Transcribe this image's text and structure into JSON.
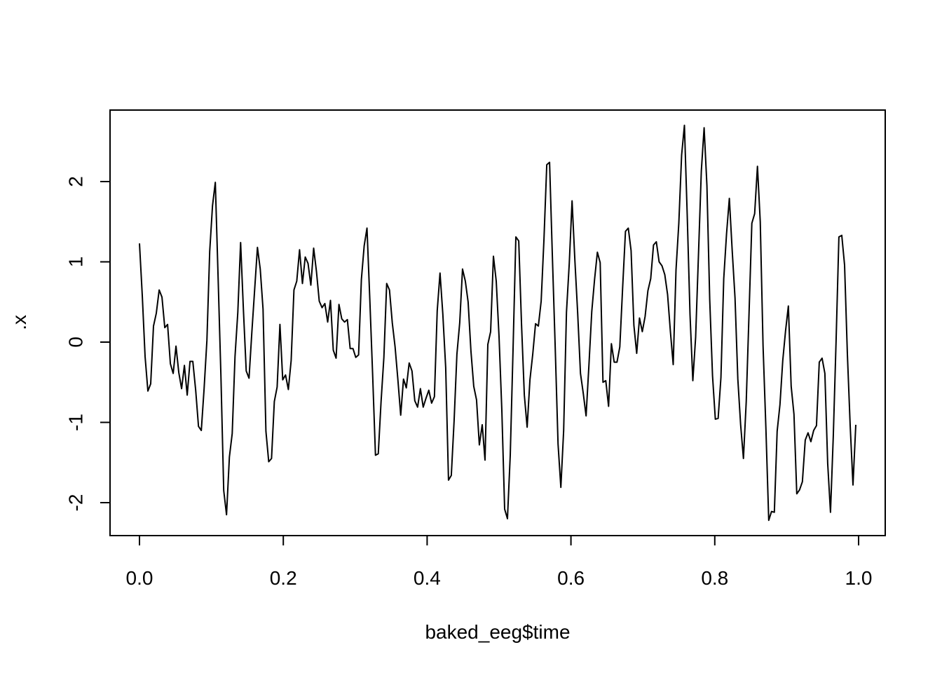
{
  "chart_data": {
    "type": "line",
    "title": "",
    "xlabel": "baked_eeg$time",
    "ylabel": ".x",
    "xlim": [
      0.0,
      1.0
    ],
    "ylim": [
      -2.5,
      2.8
    ],
    "x_ticks": [
      0.0,
      0.2,
      0.4,
      0.6,
      0.8,
      1.0
    ],
    "x_tick_labels": [
      "0.0",
      "0.2",
      "0.4",
      "0.6",
      "0.8",
      "1.0"
    ],
    "y_ticks": [
      -2,
      -1,
      0,
      1,
      2
    ],
    "y_tick_labels": [
      "-2",
      "-1",
      "0",
      "1",
      "2"
    ],
    "grid": false,
    "legend": "none",
    "line_color": "#000000",
    "series": [
      {
        "x": [
          0.0,
          0.00391,
          0.00781,
          0.01172,
          0.01563,
          0.01953,
          0.02344,
          0.02734,
          0.03125,
          0.03516,
          0.03906,
          0.04297,
          0.04688,
          0.05078,
          0.05469,
          0.05859,
          0.0625,
          0.06641,
          0.07031,
          0.07422,
          0.07813,
          0.08203,
          0.08594,
          0.08984,
          0.09375,
          0.09766,
          0.10156,
          0.10547,
          0.10938,
          0.11328,
          0.11719,
          0.12109,
          0.125,
          0.12891,
          0.13281,
          0.13672,
          0.14063,
          0.14453,
          0.14844,
          0.15234,
          0.15625,
          0.16016,
          0.16406,
          0.16797,
          0.17188,
          0.17578,
          0.17969,
          0.18359,
          0.1875,
          0.19141,
          0.19531,
          0.19922,
          0.20313,
          0.20703,
          0.21094,
          0.21484,
          0.21875,
          0.22266,
          0.22656,
          0.23047,
          0.23438,
          0.23828,
          0.24219,
          0.24609,
          0.25,
          0.25391,
          0.25781,
          0.26172,
          0.26563,
          0.26953,
          0.27344,
          0.27734,
          0.28125,
          0.28516,
          0.28906,
          0.29297,
          0.29688,
          0.30078,
          0.30469,
          0.30859,
          0.3125,
          0.31641,
          0.32031,
          0.32422,
          0.32813,
          0.33203,
          0.33594,
          0.33984,
          0.34375,
          0.34766,
          0.35156,
          0.35547,
          0.35938,
          0.36328,
          0.36719,
          0.37109,
          0.375,
          0.37891,
          0.38281,
          0.38672,
          0.39063,
          0.39453,
          0.39844,
          0.40234,
          0.40625,
          0.41016,
          0.41406,
          0.41797,
          0.42188,
          0.42578,
          0.42969,
          0.43359,
          0.4375,
          0.44141,
          0.44531,
          0.44922,
          0.45313,
          0.45703,
          0.46094,
          0.46484,
          0.46875,
          0.47266,
          0.47656,
          0.48047,
          0.48438,
          0.48828,
          0.49219,
          0.49609,
          0.5,
          0.50391,
          0.50781,
          0.51172,
          0.51563,
          0.51953,
          0.52344,
          0.52734,
          0.53125,
          0.53516,
          0.53906,
          0.54297,
          0.54688,
          0.55078,
          0.55469,
          0.55859,
          0.5625,
          0.56641,
          0.57031,
          0.57422,
          0.57813,
          0.58203,
          0.58594,
          0.58984,
          0.59375,
          0.59766,
          0.60156,
          0.60547,
          0.60938,
          0.61328,
          0.61719,
          0.62109,
          0.625,
          0.62891,
          0.63281,
          0.63672,
          0.64063,
          0.64453,
          0.64844,
          0.65234,
          0.65625,
          0.66016,
          0.66406,
          0.66797,
          0.67188,
          0.67578,
          0.67969,
          0.68359,
          0.6875,
          0.69141,
          0.69531,
          0.69922,
          0.70313,
          0.70703,
          0.71094,
          0.71484,
          0.71875,
          0.72266,
          0.72656,
          0.73047,
          0.73438,
          0.73828,
          0.74219,
          0.74609,
          0.75,
          0.75391,
          0.75781,
          0.76172,
          0.76563,
          0.76953,
          0.77344,
          0.77734,
          0.78125,
          0.78516,
          0.78906,
          0.79297,
          0.79688,
          0.80078,
          0.80469,
          0.80859,
          0.8125,
          0.81641,
          0.82031,
          0.82422,
          0.82813,
          0.83203,
          0.83594,
          0.83984,
          0.84375,
          0.84766,
          0.85156,
          0.85547,
          0.85938,
          0.86328,
          0.86719,
          0.87109,
          0.875,
          0.87891,
          0.88281,
          0.88672,
          0.89063,
          0.89453,
          0.89844,
          0.90234,
          0.90625,
          0.91016,
          0.91406,
          0.91797,
          0.92188,
          0.92578,
          0.92969,
          0.93359,
          0.9375,
          0.94141,
          0.94531,
          0.94922,
          0.95313,
          0.95703,
          0.96094,
          0.96484,
          0.96875,
          0.97266,
          0.97656,
          0.98047,
          0.98438,
          0.98828,
          0.99219,
          0.99609
        ],
        "y": [
          1.23,
          0.58,
          -0.18,
          -0.61,
          -0.52,
          0.2,
          0.36,
          0.65,
          0.56,
          0.18,
          0.22,
          -0.27,
          -0.39,
          -0.05,
          -0.38,
          -0.58,
          -0.29,
          -0.66,
          -0.24,
          -0.24,
          -0.6,
          -1.05,
          -1.1,
          -0.58,
          0.02,
          1.13,
          1.7,
          1.99,
          0.8,
          -0.42,
          -1.85,
          -2.15,
          -1.43,
          -1.14,
          -0.18,
          0.37,
          1.24,
          0.4,
          -0.36,
          -0.45,
          0.12,
          0.65,
          1.18,
          0.91,
          0.41,
          -1.11,
          -1.49,
          -1.45,
          -0.74,
          -0.56,
          0.22,
          -0.47,
          -0.41,
          -0.59,
          -0.23,
          0.65,
          0.76,
          1.15,
          0.73,
          1.06,
          0.98,
          0.71,
          1.17,
          0.88,
          0.51,
          0.43,
          0.48,
          0.25,
          0.52,
          -0.1,
          -0.2,
          0.47,
          0.29,
          0.25,
          0.28,
          -0.08,
          -0.08,
          -0.19,
          -0.16,
          0.78,
          1.2,
          1.42,
          0.54,
          -0.39,
          -1.41,
          -1.39,
          -0.74,
          -0.19,
          0.73,
          0.65,
          0.24,
          -0.06,
          -0.47,
          -0.91,
          -0.46,
          -0.57,
          -0.26,
          -0.36,
          -0.73,
          -0.81,
          -0.58,
          -0.81,
          -0.7,
          -0.6,
          -0.76,
          -0.68,
          0.39,
          0.86,
          0.35,
          -0.32,
          -1.72,
          -1.66,
          -0.98,
          -0.15,
          0.24,
          0.91,
          0.76,
          0.5,
          -0.11,
          -0.55,
          -0.72,
          -1.28,
          -1.03,
          -1.47,
          -0.03,
          0.13,
          1.07,
          0.76,
          0.07,
          -0.85,
          -2.08,
          -2.2,
          -1.41,
          -0.09,
          1.31,
          1.26,
          0.22,
          -0.66,
          -1.06,
          -0.47,
          -0.15,
          0.23,
          0.2,
          0.51,
          1.28,
          2.21,
          2.24,
          1.07,
          -0.08,
          -1.27,
          -1.81,
          -1.1,
          0.37,
          0.98,
          1.76,
          1.02,
          0.36,
          -0.39,
          -0.64,
          -0.92,
          -0.28,
          0.38,
          0.78,
          1.12,
          0.99,
          -0.5,
          -0.48,
          -0.8,
          -0.02,
          -0.25,
          -0.25,
          -0.06,
          0.67,
          1.38,
          1.42,
          1.14,
          0.21,
          -0.14,
          0.3,
          0.13,
          0.32,
          0.64,
          0.79,
          1.21,
          1.25,
          1.0,
          0.95,
          0.84,
          0.59,
          0.13,
          -0.28,
          0.9,
          1.48,
          2.33,
          2.7,
          1.58,
          0.34,
          -0.48,
          0.06,
          1.1,
          2.13,
          2.67,
          1.95,
          0.53,
          -0.42,
          -0.96,
          -0.95,
          -0.44,
          0.79,
          1.35,
          1.79,
          1.15,
          0.55,
          -0.46,
          -1.03,
          -1.45,
          -0.74,
          0.36,
          1.48,
          1.6,
          2.19,
          1.5,
          -0.05,
          -1.06,
          -2.22,
          -2.11,
          -2.12,
          -1.11,
          -0.78,
          -0.23,
          0.14,
          0.45,
          -0.55,
          -0.9,
          -1.89,
          -1.84,
          -1.74,
          -1.22,
          -1.13,
          -1.24,
          -1.1,
          -1.04,
          -0.25,
          -0.2,
          -0.39,
          -1.51,
          -2.12,
          -1.17,
          0.02,
          1.31,
          1.33,
          0.96,
          -0.15,
          -1.04,
          -1.78,
          -1.03
        ]
      }
    ]
  }
}
